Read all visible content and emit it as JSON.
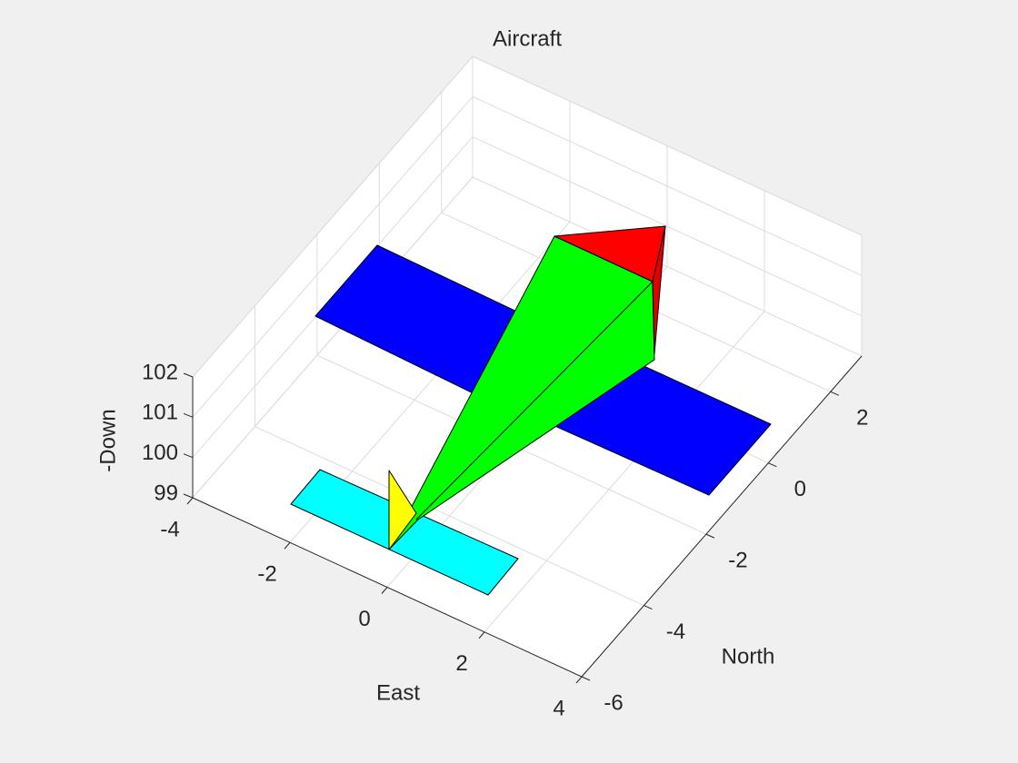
{
  "chart_data": {
    "type": "patch3d",
    "title": "Aircraft",
    "x_label": "East",
    "y_label": "North",
    "z_label": "-Down",
    "xlim": [
      -4,
      4
    ],
    "xticks": [
      -4,
      -2,
      0,
      2,
      4
    ],
    "ylim": [
      -6,
      3
    ],
    "yticks": [
      -6,
      -4,
      -2,
      0,
      2
    ],
    "zlim": [
      99,
      102
    ],
    "zticks": [
      99,
      100,
      101,
      102
    ],
    "grid": true
  }
}
